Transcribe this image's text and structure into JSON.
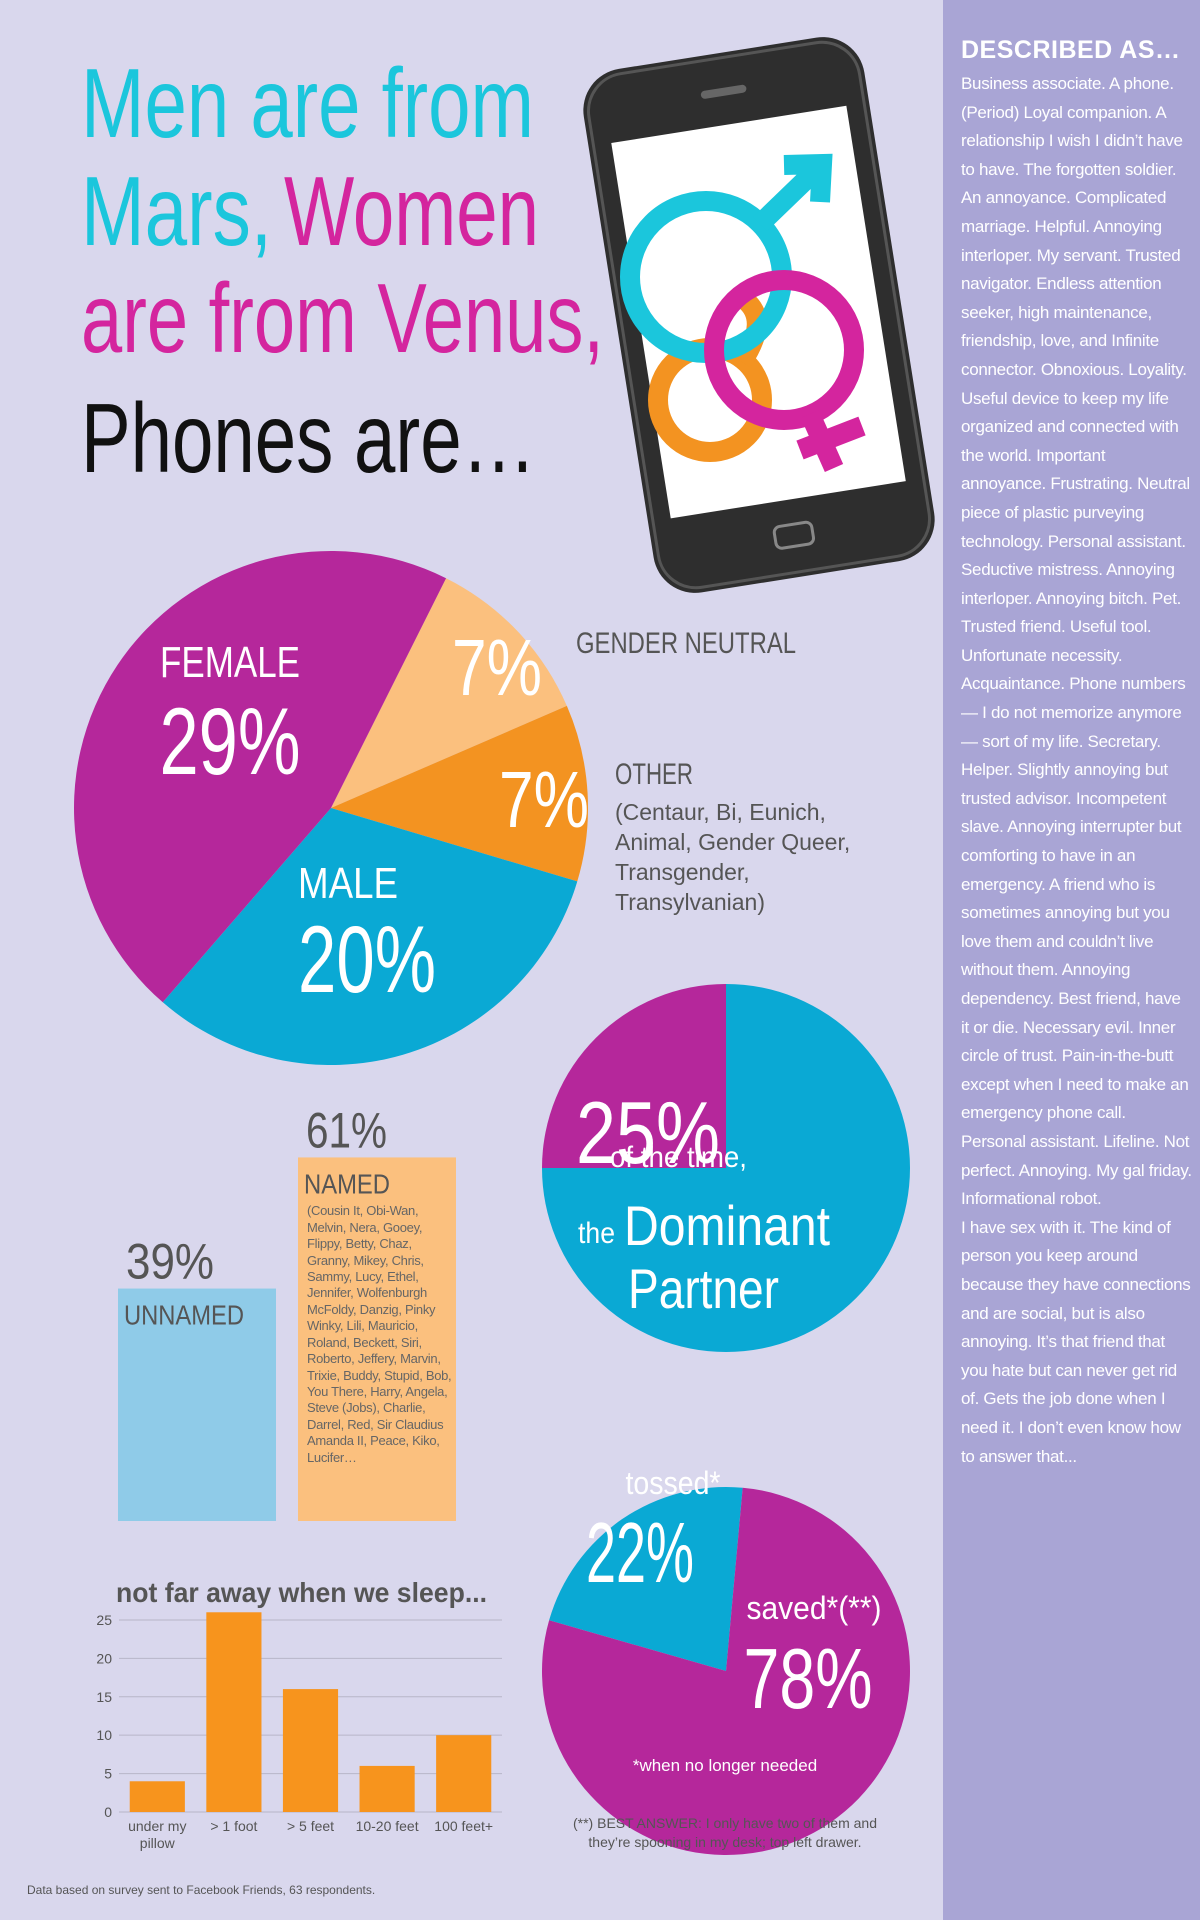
{
  "title": {
    "line1": "Men are from",
    "line2a": "Mars,",
    "line2b": "Women",
    "line3": "are from Venus,",
    "line4": "Phones are…"
  },
  "sidebar": {
    "heading": "DESCRIBED AS…",
    "paragraphs": [
      "Business associate. A phone. (Period) Loyal companion. A relationship I wish I didn’t have to have. The forgotten soldier. An annoyance. Complicated marriage. Helpful. Annoying interloper. My servant. Trusted navigator. Endless attention seeker, high maintenance, friendship, love, and Infinite connector. Obnoxious. Loyality. Useful device to keep my life organized and connected with the world. Important annoyance. Frustrating. Neutral piece of plastic purveying technology. Personal assistant. Seductive mistress. Annoying interloper. Annoying bitch. Pet. Trusted friend. Useful tool. Unfortunate necessity. Acquaintance. Phone numbers — I do not memorize anymore — sort of my life. Secretary. Helper. Slightly annoying but trusted advisor. Incompetent slave. Annoying interrupter but comforting to have in an emergency. A friend who is sometimes annoying but you love them and couldn’t live without them. Annoying dependency. Best friend, have it or die. Necessary evil. Inner circle of trust. Pain-in-the-butt except when I need to make an emergency phone call. Personal assistant. Lifeline. Not perfect. Annoying. My gal friday. Informational robot.",
      "I have sex with it. The kind of person you keep around because they have connections and are social, but is also annoying. It’s that friend that you hate but can never get rid of. Gets the job done when I need it. I don’t even know how to answer that..."
    ]
  },
  "footer": "Data based on survey sent to Facebook Friends, 63 respondents.",
  "chart_data": [
    {
      "type": "pie",
      "categories": [
        "GENDER NEUTRAL",
        "OTHER",
        "MALE",
        "FEMALE"
      ],
      "values": [
        7,
        7,
        20,
        29
      ],
      "value_labels": [
        "7%",
        "7%",
        "20%",
        "29%"
      ],
      "colors": [
        "#fbc07e",
        "#f39321",
        "#0aa9d4",
        "#b5279b"
      ],
      "note": "(Centaur, Bi, Eunich, Animal, Gender Queer, Transgender, Transylvanian)"
    },
    {
      "type": "bar",
      "categories": [
        "UNNAMED",
        "NAMED"
      ],
      "values": [
        39,
        61
      ],
      "value_labels": [
        "39%",
        "61%"
      ],
      "colors": [
        "#8fcbe8",
        "#fbc07e"
      ],
      "note": "(Cousin It, Obi-Wan, Melvin, Nera, Gooey, Flippy, Betty, Chaz, Granny, Mikey, Chris, Sammy, Lucy, Ethel, Jennifer, Wolfenburgh McFoldy, Danzig, Pinky Winky, Lili, Mauricio, Roland, Beckett, Siri, Roberto, Jeffery, Marvin, Trixie, Buddy, Stupid, Bob, You There, Harry, Angela, Steve (Jobs), Charlie, Darrel, Red, Sir Claudius Amanda II, Peace, Kiko, Lucifer…"
    },
    {
      "type": "pie",
      "values": [
        25,
        75
      ],
      "value_labels": [
        "25%",
        null
      ],
      "colors": [
        "#b5279b",
        "#0aa9d4"
      ],
      "annotations": [
        "of the time,",
        "the",
        "Dominant",
        "Partner"
      ]
    },
    {
      "type": "pie",
      "categories": [
        "tossed*",
        "saved*(**)"
      ],
      "values": [
        22,
        78
      ],
      "value_labels": [
        "22%",
        "78%"
      ],
      "colors": [
        "#0aa9d4",
        "#b5279b"
      ],
      "note": "*when no longer needed",
      "footnote": "(**) BEST ANSWER: I only have two of them and they’re spooning in my desk; top left drawer."
    },
    {
      "type": "bar",
      "title": "not far away when we sleep...",
      "categories": [
        "under my pillow",
        "> 1 foot",
        "> 5 feet",
        "10-20 feet",
        "100 feet+"
      ],
      "values": [
        4,
        26,
        16,
        6,
        10
      ],
      "color": "#f7941d",
      "ylim": [
        0,
        27
      ],
      "yticks": [
        0,
        5,
        10,
        15,
        20,
        25
      ],
      "grid": true
    }
  ]
}
